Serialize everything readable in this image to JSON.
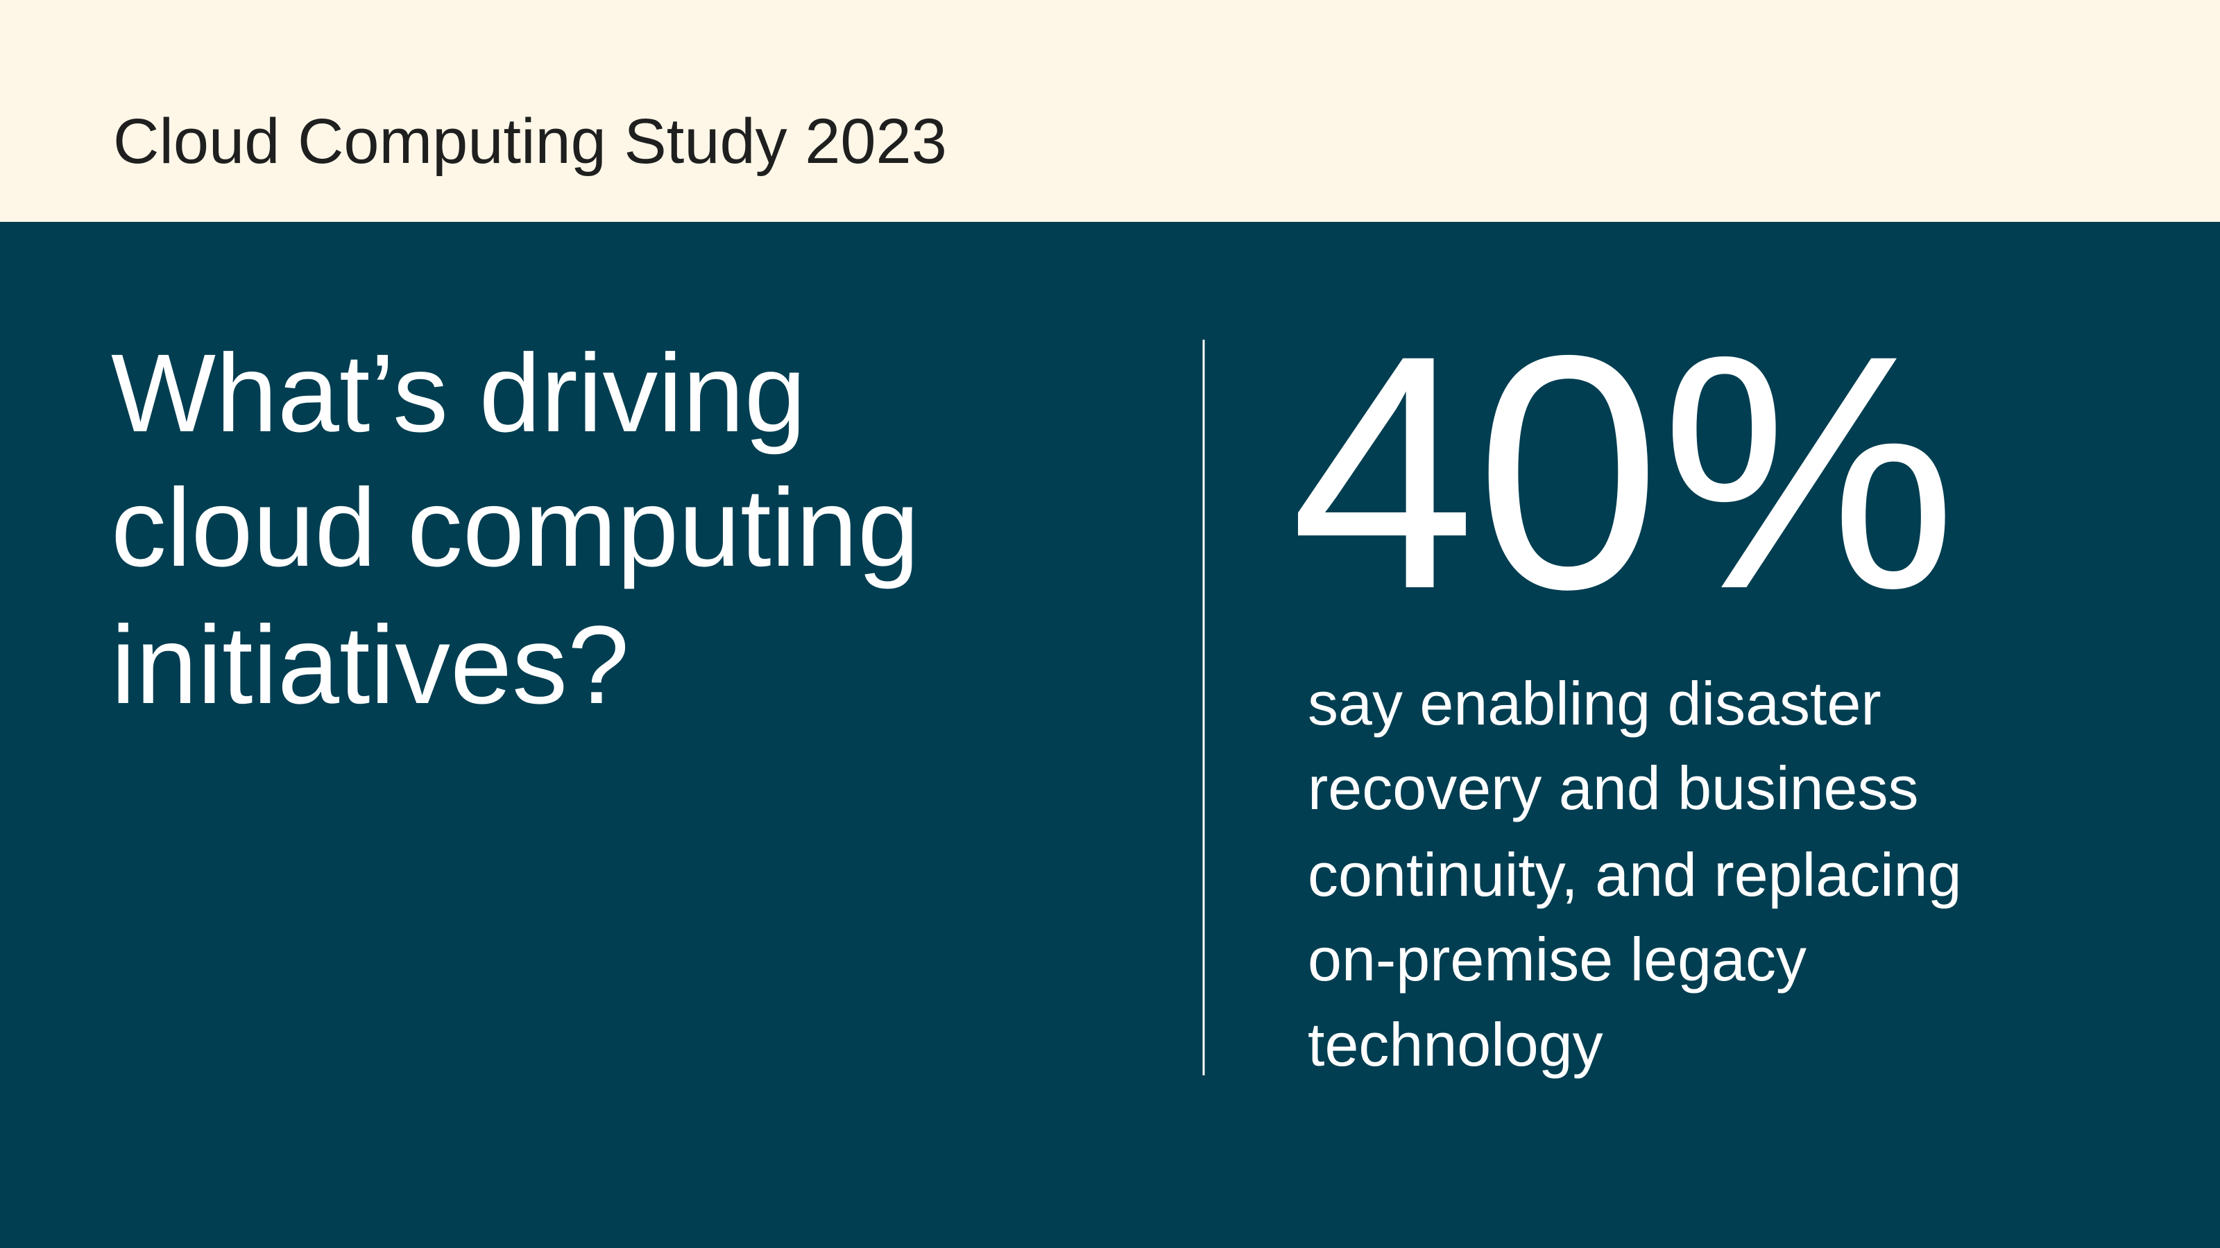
{
  "header": {
    "title": "Cloud Computing Study 2023"
  },
  "question": {
    "lines": [
      "What’s driving",
      "cloud computing",
      "initiatives?"
    ]
  },
  "stat": {
    "value": "40%",
    "description": [
      "say enabling disaster",
      "recovery and business",
      "continuity, and replacing",
      "on-premise legacy",
      "technology"
    ]
  }
}
